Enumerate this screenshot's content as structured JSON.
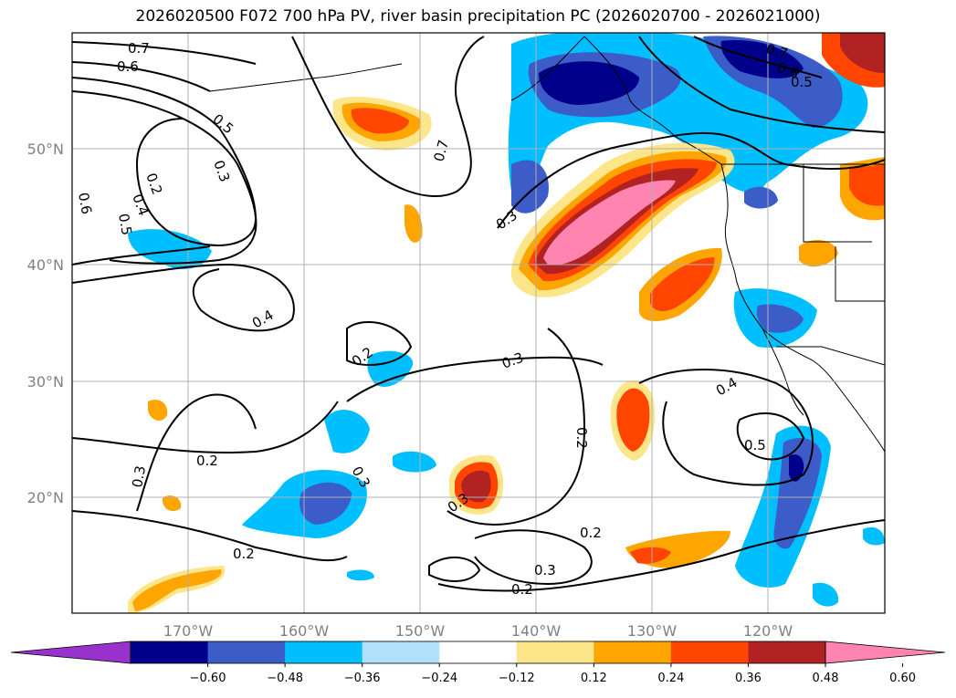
{
  "title": "2026020500 F072 700 hPa PV, river basin precipitation PC (2026020700 - 2026021000)",
  "lon_ticks": [
    "170°W",
    "160°W",
    "150°W",
    "140°W",
    "130°W",
    "120°W"
  ],
  "lat_ticks": [
    "20°N",
    "30°N",
    "40°N",
    "50°N"
  ],
  "colorbar": {
    "colors": [
      "#9932cc",
      "#00008b",
      "#3c5cc8",
      "#00bfff",
      "#b0e0fa",
      "#ffffff",
      "#fde68a",
      "#ffa500",
      "#ff4500",
      "#b22222",
      "#ff85b0"
    ],
    "tick_labels": [
      "−0.60",
      "−0.48",
      "−0.36",
      "−0.24",
      "−0.12",
      "0.12",
      "0.24",
      "0.36",
      "0.48",
      "0.60"
    ]
  },
  "contour_labels": [
    {
      "text": "0.7"
    },
    {
      "text": "0.6"
    },
    {
      "text": "0.5"
    },
    {
      "text": "0.3"
    },
    {
      "text": "0.2"
    },
    {
      "text": "0.4"
    },
    {
      "text": "0.6"
    },
    {
      "text": "0.5"
    },
    {
      "text": "0.7"
    },
    {
      "text": "0.3"
    },
    {
      "text": "0.7"
    },
    {
      "text": "0.6"
    },
    {
      "text": "0.5"
    },
    {
      "text": "0.4"
    },
    {
      "text": "0.2"
    },
    {
      "text": "0.3"
    },
    {
      "text": "0.2"
    },
    {
      "text": "0.3"
    },
    {
      "text": "0.2"
    },
    {
      "text": "0.3"
    },
    {
      "text": "0.4"
    },
    {
      "text": "0.5"
    },
    {
      "text": "0.2"
    },
    {
      "text": "0.2"
    },
    {
      "text": "0.3"
    },
    {
      "text": "0.3"
    },
    {
      "text": "0.2"
    }
  ]
}
